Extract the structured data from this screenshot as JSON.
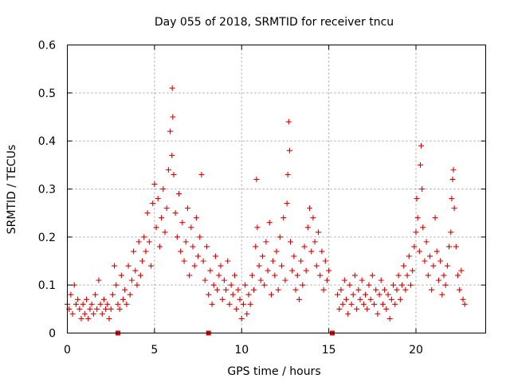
{
  "chart_data": {
    "type": "scatter",
    "title": "Day 055 of 2018, SRMTID for receiver tncu",
    "xlabel": "GPS time / hours",
    "ylabel": "SRMTID / TECUs",
    "xlim": [
      0,
      24
    ],
    "ylim": [
      0,
      0.6
    ],
    "xticks": [
      0,
      5,
      10,
      15,
      20
    ],
    "xtick_labels": [
      "0",
      "5",
      "10",
      "15",
      "20"
    ],
    "yticks": [
      0,
      0.1,
      0.2,
      0.3,
      0.4,
      0.5,
      0.6
    ],
    "ytick_labels": [
      "0",
      "0.1",
      "0.2",
      "0.3",
      "0.4",
      "0.5",
      "0.6"
    ],
    "grid": true,
    "marker": "plus",
    "color": "#dd0000",
    "series": [
      {
        "name": "SRMTID",
        "points": [
          [
            0.0,
            0.06
          ],
          [
            0.1,
            0.05
          ],
          [
            0.2,
            0.08
          ],
          [
            0.3,
            0.04
          ],
          [
            0.4,
            0.1
          ],
          [
            0.5,
            0.06
          ],
          [
            0.6,
            0.07
          ],
          [
            0.7,
            0.05
          ],
          [
            0.8,
            0.03
          ],
          [
            0.9,
            0.06
          ],
          [
            1.0,
            0.04
          ],
          [
            1.1,
            0.07
          ],
          [
            1.2,
            0.03
          ],
          [
            1.3,
            0.05
          ],
          [
            1.4,
            0.06
          ],
          [
            1.5,
            0.04
          ],
          [
            1.6,
            0.08
          ],
          [
            1.7,
            0.05
          ],
          [
            1.8,
            0.11
          ],
          [
            1.9,
            0.06
          ],
          [
            2.0,
            0.04
          ],
          [
            2.1,
            0.07
          ],
          [
            2.2,
            0.05
          ],
          [
            2.3,
            0.06
          ],
          [
            2.4,
            0.03
          ],
          [
            2.5,
            0.05
          ],
          [
            2.6,
            0.08
          ],
          [
            2.7,
            0.14
          ],
          [
            2.8,
            0.1
          ],
          [
            2.9,
            0.06
          ],
          [
            3.0,
            0.05
          ],
          [
            3.1,
            0.12
          ],
          [
            3.2,
            0.07
          ],
          [
            3.3,
            0.09
          ],
          [
            3.4,
            0.06
          ],
          [
            3.5,
            0.14
          ],
          [
            3.6,
            0.08
          ],
          [
            3.7,
            0.11
          ],
          [
            3.8,
            0.17
          ],
          [
            3.9,
            0.13
          ],
          [
            4.0,
            0.1
          ],
          [
            4.1,
            0.19
          ],
          [
            4.2,
            0.12
          ],
          [
            4.3,
            0.15
          ],
          [
            4.4,
            0.2
          ],
          [
            4.5,
            0.17
          ],
          [
            4.6,
            0.25
          ],
          [
            4.7,
            0.19
          ],
          [
            4.8,
            0.14
          ],
          [
            4.9,
            0.27
          ],
          [
            5.0,
            0.31
          ],
          [
            5.1,
            0.22
          ],
          [
            5.2,
            0.28
          ],
          [
            5.3,
            0.18
          ],
          [
            5.4,
            0.24
          ],
          [
            5.5,
            0.3
          ],
          [
            5.6,
            0.21
          ],
          [
            5.7,
            0.26
          ],
          [
            5.8,
            0.34
          ],
          [
            5.9,
            0.42
          ],
          [
            6.0,
            0.37
          ],
          [
            6.02,
            0.51
          ],
          [
            6.05,
            0.45
          ],
          [
            6.1,
            0.33
          ],
          [
            6.2,
            0.25
          ],
          [
            6.3,
            0.2
          ],
          [
            6.4,
            0.29
          ],
          [
            6.5,
            0.17
          ],
          [
            6.6,
            0.23
          ],
          [
            6.7,
            0.15
          ],
          [
            6.8,
            0.19
          ],
          [
            6.9,
            0.26
          ],
          [
            7.0,
            0.12
          ],
          [
            7.1,
            0.22
          ],
          [
            7.2,
            0.18
          ],
          [
            7.3,
            0.14
          ],
          [
            7.4,
            0.24
          ],
          [
            7.5,
            0.16
          ],
          [
            7.6,
            0.2
          ],
          [
            7.7,
            0.33
          ],
          [
            7.8,
            0.15
          ],
          [
            7.9,
            0.11
          ],
          [
            8.0,
            0.18
          ],
          [
            8.1,
            0.08
          ],
          [
            8.2,
            0.13
          ],
          [
            8.3,
            0.06
          ],
          [
            8.4,
            0.1
          ],
          [
            8.5,
            0.16
          ],
          [
            8.6,
            0.09
          ],
          [
            8.7,
            0.12
          ],
          [
            8.8,
            0.14
          ],
          [
            8.9,
            0.07
          ],
          [
            9.0,
            0.11
          ],
          [
            9.1,
            0.09
          ],
          [
            9.2,
            0.15
          ],
          [
            9.3,
            0.06
          ],
          [
            9.4,
            0.1
          ],
          [
            9.5,
            0.08
          ],
          [
            9.6,
            0.12
          ],
          [
            9.7,
            0.05
          ],
          [
            9.8,
            0.09
          ],
          [
            9.9,
            0.07
          ],
          [
            10.0,
            0.03
          ],
          [
            10.1,
            0.06
          ],
          [
            10.2,
            0.1
          ],
          [
            10.3,
            0.04
          ],
          [
            10.4,
            0.08
          ],
          [
            10.5,
            0.06
          ],
          [
            10.6,
            0.12
          ],
          [
            10.7,
            0.09
          ],
          [
            10.8,
            0.18
          ],
          [
            10.85,
            0.32
          ],
          [
            10.9,
            0.22
          ],
          [
            11.0,
            0.14
          ],
          [
            11.1,
            0.11
          ],
          [
            11.2,
            0.16
          ],
          [
            11.3,
            0.1
          ],
          [
            11.4,
            0.19
          ],
          [
            11.5,
            0.13
          ],
          [
            11.6,
            0.23
          ],
          [
            11.7,
            0.08
          ],
          [
            11.8,
            0.15
          ],
          [
            11.9,
            0.12
          ],
          [
            12.0,
            0.17
          ],
          [
            12.1,
            0.09
          ],
          [
            12.2,
            0.2
          ],
          [
            12.3,
            0.14
          ],
          [
            12.4,
            0.24
          ],
          [
            12.5,
            0.11
          ],
          [
            12.6,
            0.27
          ],
          [
            12.65,
            0.33
          ],
          [
            12.7,
            0.44
          ],
          [
            12.75,
            0.38
          ],
          [
            12.8,
            0.19
          ],
          [
            12.9,
            0.13
          ],
          [
            13.0,
            0.16
          ],
          [
            13.1,
            0.09
          ],
          [
            13.2,
            0.12
          ],
          [
            13.3,
            0.07
          ],
          [
            13.4,
            0.15
          ],
          [
            13.5,
            0.1
          ],
          [
            13.6,
            0.18
          ],
          [
            13.7,
            0.13
          ],
          [
            13.8,
            0.22
          ],
          [
            13.9,
            0.26
          ],
          [
            14.0,
            0.17
          ],
          [
            14.1,
            0.24
          ],
          [
            14.2,
            0.19
          ],
          [
            14.3,
            0.14
          ],
          [
            14.4,
            0.21
          ],
          [
            14.5,
            0.12
          ],
          [
            14.6,
            0.17
          ],
          [
            14.7,
            0.09
          ],
          [
            14.8,
            0.15
          ],
          [
            14.9,
            0.11
          ],
          [
            15.0,
            0.13
          ],
          [
            15.5,
            0.08
          ],
          [
            15.6,
            0.05
          ],
          [
            15.7,
            0.09
          ],
          [
            15.8,
            0.06
          ],
          [
            15.9,
            0.11
          ],
          [
            16.0,
            0.07
          ],
          [
            16.1,
            0.04
          ],
          [
            16.2,
            0.1
          ],
          [
            16.3,
            0.06
          ],
          [
            16.4,
            0.08
          ],
          [
            16.5,
            0.12
          ],
          [
            16.6,
            0.05
          ],
          [
            16.7,
            0.09
          ],
          [
            16.8,
            0.07
          ],
          [
            16.9,
            0.11
          ],
          [
            17.0,
            0.06
          ],
          [
            17.1,
            0.08
          ],
          [
            17.2,
            0.05
          ],
          [
            17.3,
            0.1
          ],
          [
            17.4,
            0.07
          ],
          [
            17.5,
            0.12
          ],
          [
            17.6,
            0.06
          ],
          [
            17.7,
            0.09
          ],
          [
            17.8,
            0.04
          ],
          [
            17.9,
            0.08
          ],
          [
            18.0,
            0.11
          ],
          [
            18.1,
            0.06
          ],
          [
            18.2,
            0.09
          ],
          [
            18.3,
            0.05
          ],
          [
            18.4,
            0.08
          ],
          [
            18.5,
            0.03
          ],
          [
            18.6,
            0.07
          ],
          [
            18.7,
            0.1
          ],
          [
            18.8,
            0.06
          ],
          [
            18.9,
            0.09
          ],
          [
            19.0,
            0.12
          ],
          [
            19.1,
            0.07
          ],
          [
            19.2,
            0.1
          ],
          [
            19.3,
            0.14
          ],
          [
            19.4,
            0.09
          ],
          [
            19.5,
            0.12
          ],
          [
            19.6,
            0.16
          ],
          [
            19.7,
            0.1
          ],
          [
            19.8,
            0.13
          ],
          [
            19.9,
            0.18
          ],
          [
            20.0,
            0.21
          ],
          [
            20.05,
            0.28
          ],
          [
            20.1,
            0.24
          ],
          [
            20.2,
            0.17
          ],
          [
            20.25,
            0.35
          ],
          [
            20.3,
            0.39
          ],
          [
            20.35,
            0.3
          ],
          [
            20.4,
            0.22
          ],
          [
            20.5,
            0.15
          ],
          [
            20.6,
            0.19
          ],
          [
            20.7,
            0.12
          ],
          [
            20.8,
            0.16
          ],
          [
            20.9,
            0.09
          ],
          [
            21.0,
            0.14
          ],
          [
            21.1,
            0.24
          ],
          [
            21.2,
            0.17
          ],
          [
            21.3,
            0.11
          ],
          [
            21.4,
            0.15
          ],
          [
            21.5,
            0.08
          ],
          [
            21.6,
            0.12
          ],
          [
            21.7,
            0.1
          ],
          [
            21.8,
            0.14
          ],
          [
            21.9,
            0.18
          ],
          [
            22.0,
            0.21
          ],
          [
            22.05,
            0.28
          ],
          [
            22.1,
            0.32
          ],
          [
            22.15,
            0.34
          ],
          [
            22.2,
            0.26
          ],
          [
            22.3,
            0.18
          ],
          [
            22.4,
            0.12
          ],
          [
            22.5,
            0.09
          ],
          [
            22.6,
            0.13
          ],
          [
            22.7,
            0.07
          ],
          [
            22.8,
            0.06
          ]
        ]
      }
    ],
    "gap_markers_x": [
      2.9,
      8.1,
      15.2
    ]
  }
}
